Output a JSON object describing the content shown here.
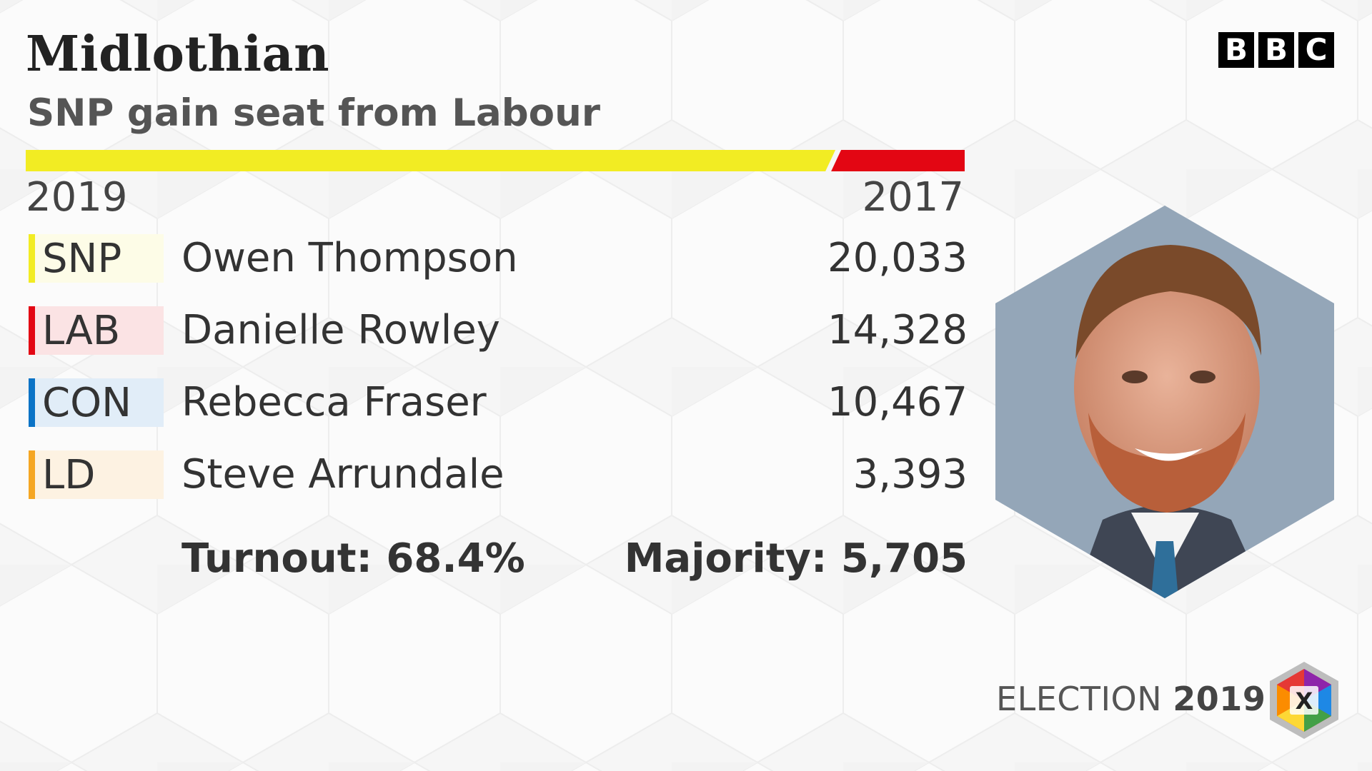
{
  "header": {
    "title": "Midlothian",
    "subtitle": "SNP gain seat from Labour",
    "logo_letters": [
      "B",
      "B",
      "C"
    ]
  },
  "comparison_bar": {
    "current_share": 0.857,
    "current_color": "#f2ec23",
    "previous_color": "#e30613",
    "current_year": "2019",
    "previous_year": "2017"
  },
  "results": [
    {
      "party": "SNP",
      "candidate": "Owen Thompson",
      "votes": "20,033",
      "color": "#f2ec23",
      "tint": "#fdfce7"
    },
    {
      "party": "LAB",
      "candidate": "Danielle Rowley",
      "votes": "14,328",
      "color": "#e30613",
      "tint": "#fbe3e4"
    },
    {
      "party": "CON",
      "candidate": "Rebecca Fraser",
      "votes": "10,467",
      "color": "#0a73c6",
      "tint": "#e1edf8"
    },
    {
      "party": "LD",
      "candidate": "Steve Arrundale",
      "votes": "3,393",
      "color": "#f5a623",
      "tint": "#fdf2e2"
    }
  ],
  "footer_stats": {
    "turnout": "Turnout: 68.4%",
    "majority": "Majority: 5,705"
  },
  "branding": {
    "election_word": "ELECTION",
    "election_year": "2019",
    "election_logo_mark": "X"
  },
  "icons": {
    "photo": "candidate-portrait-icon",
    "election_logo": "election-ballot-cross-icon"
  }
}
